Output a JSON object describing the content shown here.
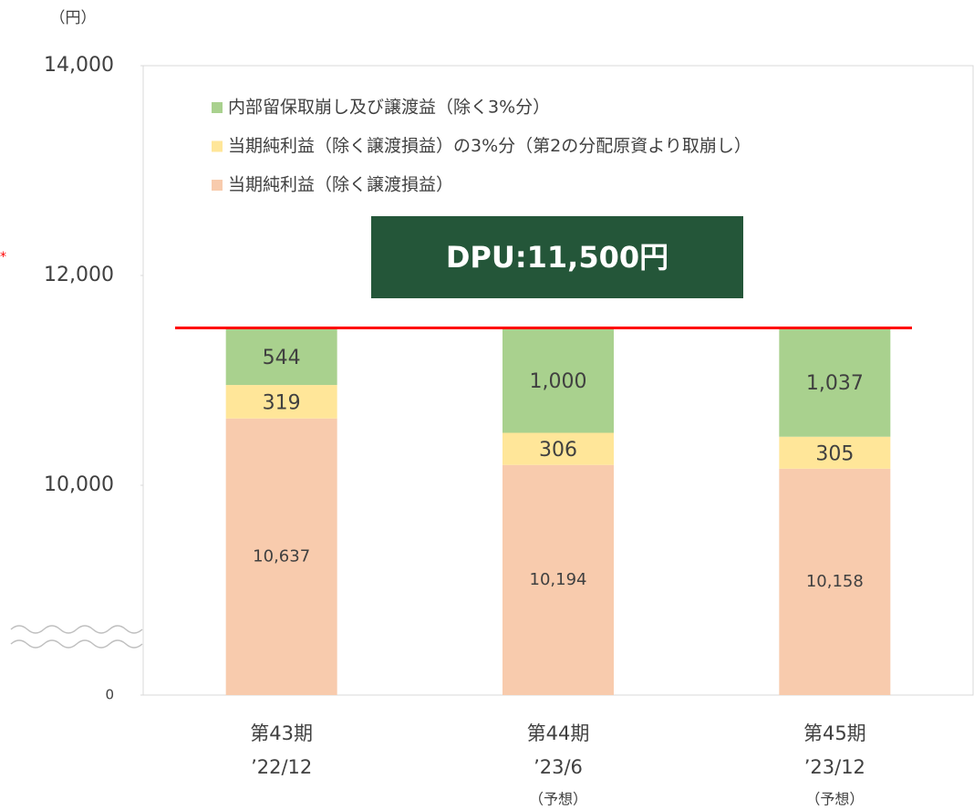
{
  "chart_data": {
    "type": "stacked_bar",
    "unit_label": "（円）",
    "side_mark": "*",
    "categories": [
      "第43期",
      "第44期",
      "第45期"
    ],
    "sub_categories": [
      "’22/12",
      "’23/6",
      "’23/12"
    ],
    "notes": [
      null,
      "（予想）",
      "（予想）"
    ],
    "series": [
      {
        "name": "当期純利益（除く譲渡損益）",
        "color": "#f8cbad",
        "values": [
          10637,
          10194,
          10158
        ],
        "value_labels": [
          "10,637",
          "10,194",
          "10,158"
        ]
      },
      {
        "name": "当期純利益（除く譲渡損益）の3%分（第2の分配原資より取崩し）",
        "color": "#ffe699",
        "values": [
          319,
          306,
          305
        ]
      },
      {
        "name": "内部留保取崩し及び譲渡益（除く3%分）",
        "color": "#a9d18e",
        "values": [
          544,
          1000,
          1037
        ],
        "value_labels": [
          "544",
          "1,000",
          "1,037"
        ]
      }
    ],
    "ylim": [
      0,
      14000
    ],
    "yticks": [
      0,
      {
        "value": 10000,
        "label": "10,000"
      },
      {
        "value": 12000,
        "label": "12,000"
      },
      {
        "value": 14000,
        "label": "14,000"
      }
    ],
    "y_scale": "broken",
    "reference_line": {
      "value": 11500,
      "color": "#ff0000"
    },
    "annotation": "DPU:11,500円",
    "annotation_color": "#245639",
    "legend": "top-left"
  }
}
